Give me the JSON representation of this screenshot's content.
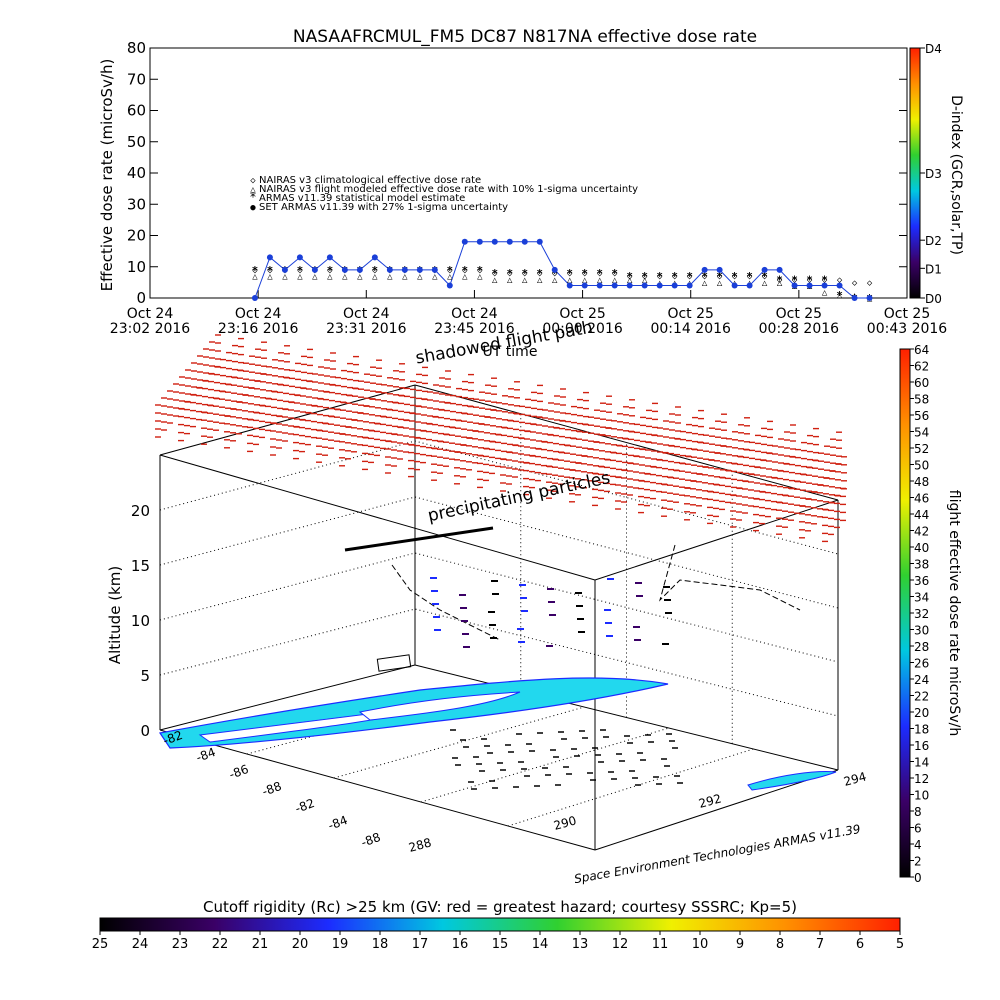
{
  "colors": {
    "nairas_clim": "#d04010",
    "nairas_flight": "#000000",
    "armas_stat": "#30e030",
    "armas_meas": "#1a3fd8",
    "flight_bar": [
      "#000000",
      "#3a0066",
      "#1c2cff",
      "#00c8e0",
      "#30d030",
      "#f0f000",
      "#ff9000",
      "#ff2000"
    ],
    "rc_bar": [
      "#000000",
      "#3a0066",
      "#1c2cff",
      "#00c8e0",
      "#30d030",
      "#f0f000",
      "#ff9000",
      "#ff2000"
    ],
    "dindex_bar": [
      "#000000",
      "#3a0066",
      "#1c2cff",
      "#00c8e0",
      "#30d030",
      "#f0f000",
      "#ff9000",
      "#ff2000"
    ]
  },
  "top_chart": {
    "title": "NASAAFRCMUL_FM5 DC87 N817NA effective dose rate",
    "ylabel": "Effective dose rate (microSv/h)",
    "right_label": "D-index (GCR,solar,TP)",
    "right_ticks": [
      "D4",
      "D3",
      "D2",
      "D1",
      "D0"
    ],
    "right_tick_values": [
      80,
      40,
      18.5,
      9.5,
      0
    ],
    "legend": [
      "NAIRAS v3 climatological effective dose rate",
      "NAIRAS v3 flight modeled effective dose rate with 10% 1-sigma uncertainty",
      "ARMAS v11.39 statistical model estimate",
      "SET ARMAS v11.39 with 27% 1-sigma uncertainty"
    ],
    "x_ticks": [
      {
        "day": "Oct 24",
        "time": "23:02 2016"
      },
      {
        "day": "Oct 24",
        "time": "23:16 2016"
      },
      {
        "day": "Oct 24",
        "time": "23:31 2016"
      },
      {
        "day": "Oct 24",
        "time": "23:45 2016"
      },
      {
        "day": "Oct 25",
        "time": "00:00 2016"
      },
      {
        "day": "Oct 25",
        "time": "00:14 2016"
      },
      {
        "day": "Oct 25",
        "time": "00:28 2016"
      },
      {
        "day": "Oct 25",
        "time": "00:43 2016"
      }
    ],
    "xlabel": "UT time"
  },
  "bottom_chart": {
    "ylabel": "Altitude (km)",
    "z_ticks": [
      "0",
      "5",
      "10",
      "15",
      "20"
    ],
    "lat_ticks": [
      "-82",
      "-84",
      "-86",
      "-88",
      "-82",
      "-84",
      "-88"
    ],
    "lon_ticks": [
      "288",
      "290",
      "292",
      "294"
    ],
    "annotation_shadowed": "shadowed flight path",
    "annotation_precip": "precipitating particles",
    "credit": "Space Environment Technologies ARMAS v11.39",
    "right_label": "flight effective dose rate microSv/h",
    "right_ticks": [
      "64",
      "62",
      "60",
      "58",
      "56",
      "54",
      "52",
      "50",
      "48",
      "46",
      "44",
      "42",
      "40",
      "38",
      "36",
      "34",
      "32",
      "30",
      "28",
      "26",
      "24",
      "22",
      "20",
      "18",
      "16",
      "14",
      "12",
      "10",
      "8",
      "6",
      "4",
      "2",
      "0"
    ]
  },
  "rc_bar": {
    "label": "Cutoff rigidity (Rc) >25 km (GV: red = greatest hazard; courtesy SSSRC; Kp=5)",
    "ticks": [
      "25",
      "24",
      "23",
      "22",
      "21",
      "20",
      "19",
      "18",
      "17",
      "16",
      "15",
      "14",
      "13",
      "12",
      "11",
      "10",
      "9",
      "8",
      "7",
      "6",
      "5"
    ]
  },
  "chart_data": {
    "type": "scatter",
    "title": "NASAAFRCMUL_FM5 DC87 N817NA effective dose rate",
    "ylabel": "Effective dose rate (microSv/h)",
    "xlabel": "UT time",
    "x_unit": "minutes",
    "ylim": [
      0,
      80
    ],
    "x": [
      14,
      16,
      18,
      20,
      22,
      24,
      26,
      28,
      30,
      32,
      34,
      36,
      38,
      40,
      42,
      44,
      46,
      48,
      50,
      52,
      54,
      56,
      58,
      60,
      62,
      64,
      66,
      68,
      70,
      72,
      74,
      76,
      78,
      80,
      82,
      84,
      86,
      88,
      90,
      92,
      94,
      96
    ],
    "series": [
      {
        "name": "NAIRAS v3 climatological effective dose rate",
        "values": [
          9,
          9,
          9,
          9,
          9,
          9,
          9,
          9,
          9,
          9,
          9,
          9,
          9,
          9,
          9,
          9,
          8,
          8,
          8,
          8,
          8,
          8,
          8,
          8,
          8,
          7,
          7,
          7,
          7,
          7,
          7,
          7,
          7,
          7,
          7,
          6,
          6,
          6,
          6,
          6,
          5,
          5
        ]
      },
      {
        "name": "NAIRAS v3 flight modeled effective dose rate with 10% 1-sigma uncertainty",
        "values": [
          7,
          7,
          7,
          7,
          7,
          7,
          7,
          7,
          7,
          7,
          7,
          7,
          7,
          7,
          7,
          7,
          6,
          6,
          6,
          6,
          6,
          6,
          6,
          6,
          6,
          6,
          6,
          5,
          5,
          5,
          5,
          5,
          5,
          5,
          5,
          5,
          4,
          4,
          2,
          1,
          1,
          0
        ]
      },
      {
        "name": "ARMAS v11.39 statistical model estimate",
        "values": [
          9,
          9,
          9,
          9,
          9,
          9,
          9,
          9,
          9,
          9,
          9,
          9,
          9,
          9,
          9,
          9,
          8,
          8,
          8,
          8,
          8,
          8,
          8,
          8,
          8,
          7,
          7,
          7,
          7,
          7,
          7,
          7,
          7,
          7,
          7,
          6,
          6,
          6,
          6,
          1,
          0,
          0
        ]
      },
      {
        "name": "SET ARMAS v11.39 with 27% 1-sigma uncertainty",
        "values": [
          0,
          13,
          9,
          13,
          9,
          13,
          9,
          9,
          13,
          9,
          9,
          9,
          9,
          4,
          18,
          18,
          18,
          18,
          18,
          18,
          9,
          4,
          4,
          4,
          4,
          4,
          4,
          4,
          4,
          4,
          9,
          9,
          4,
          4,
          9,
          9,
          4,
          4,
          4,
          4,
          0,
          0
        ]
      }
    ]
  }
}
